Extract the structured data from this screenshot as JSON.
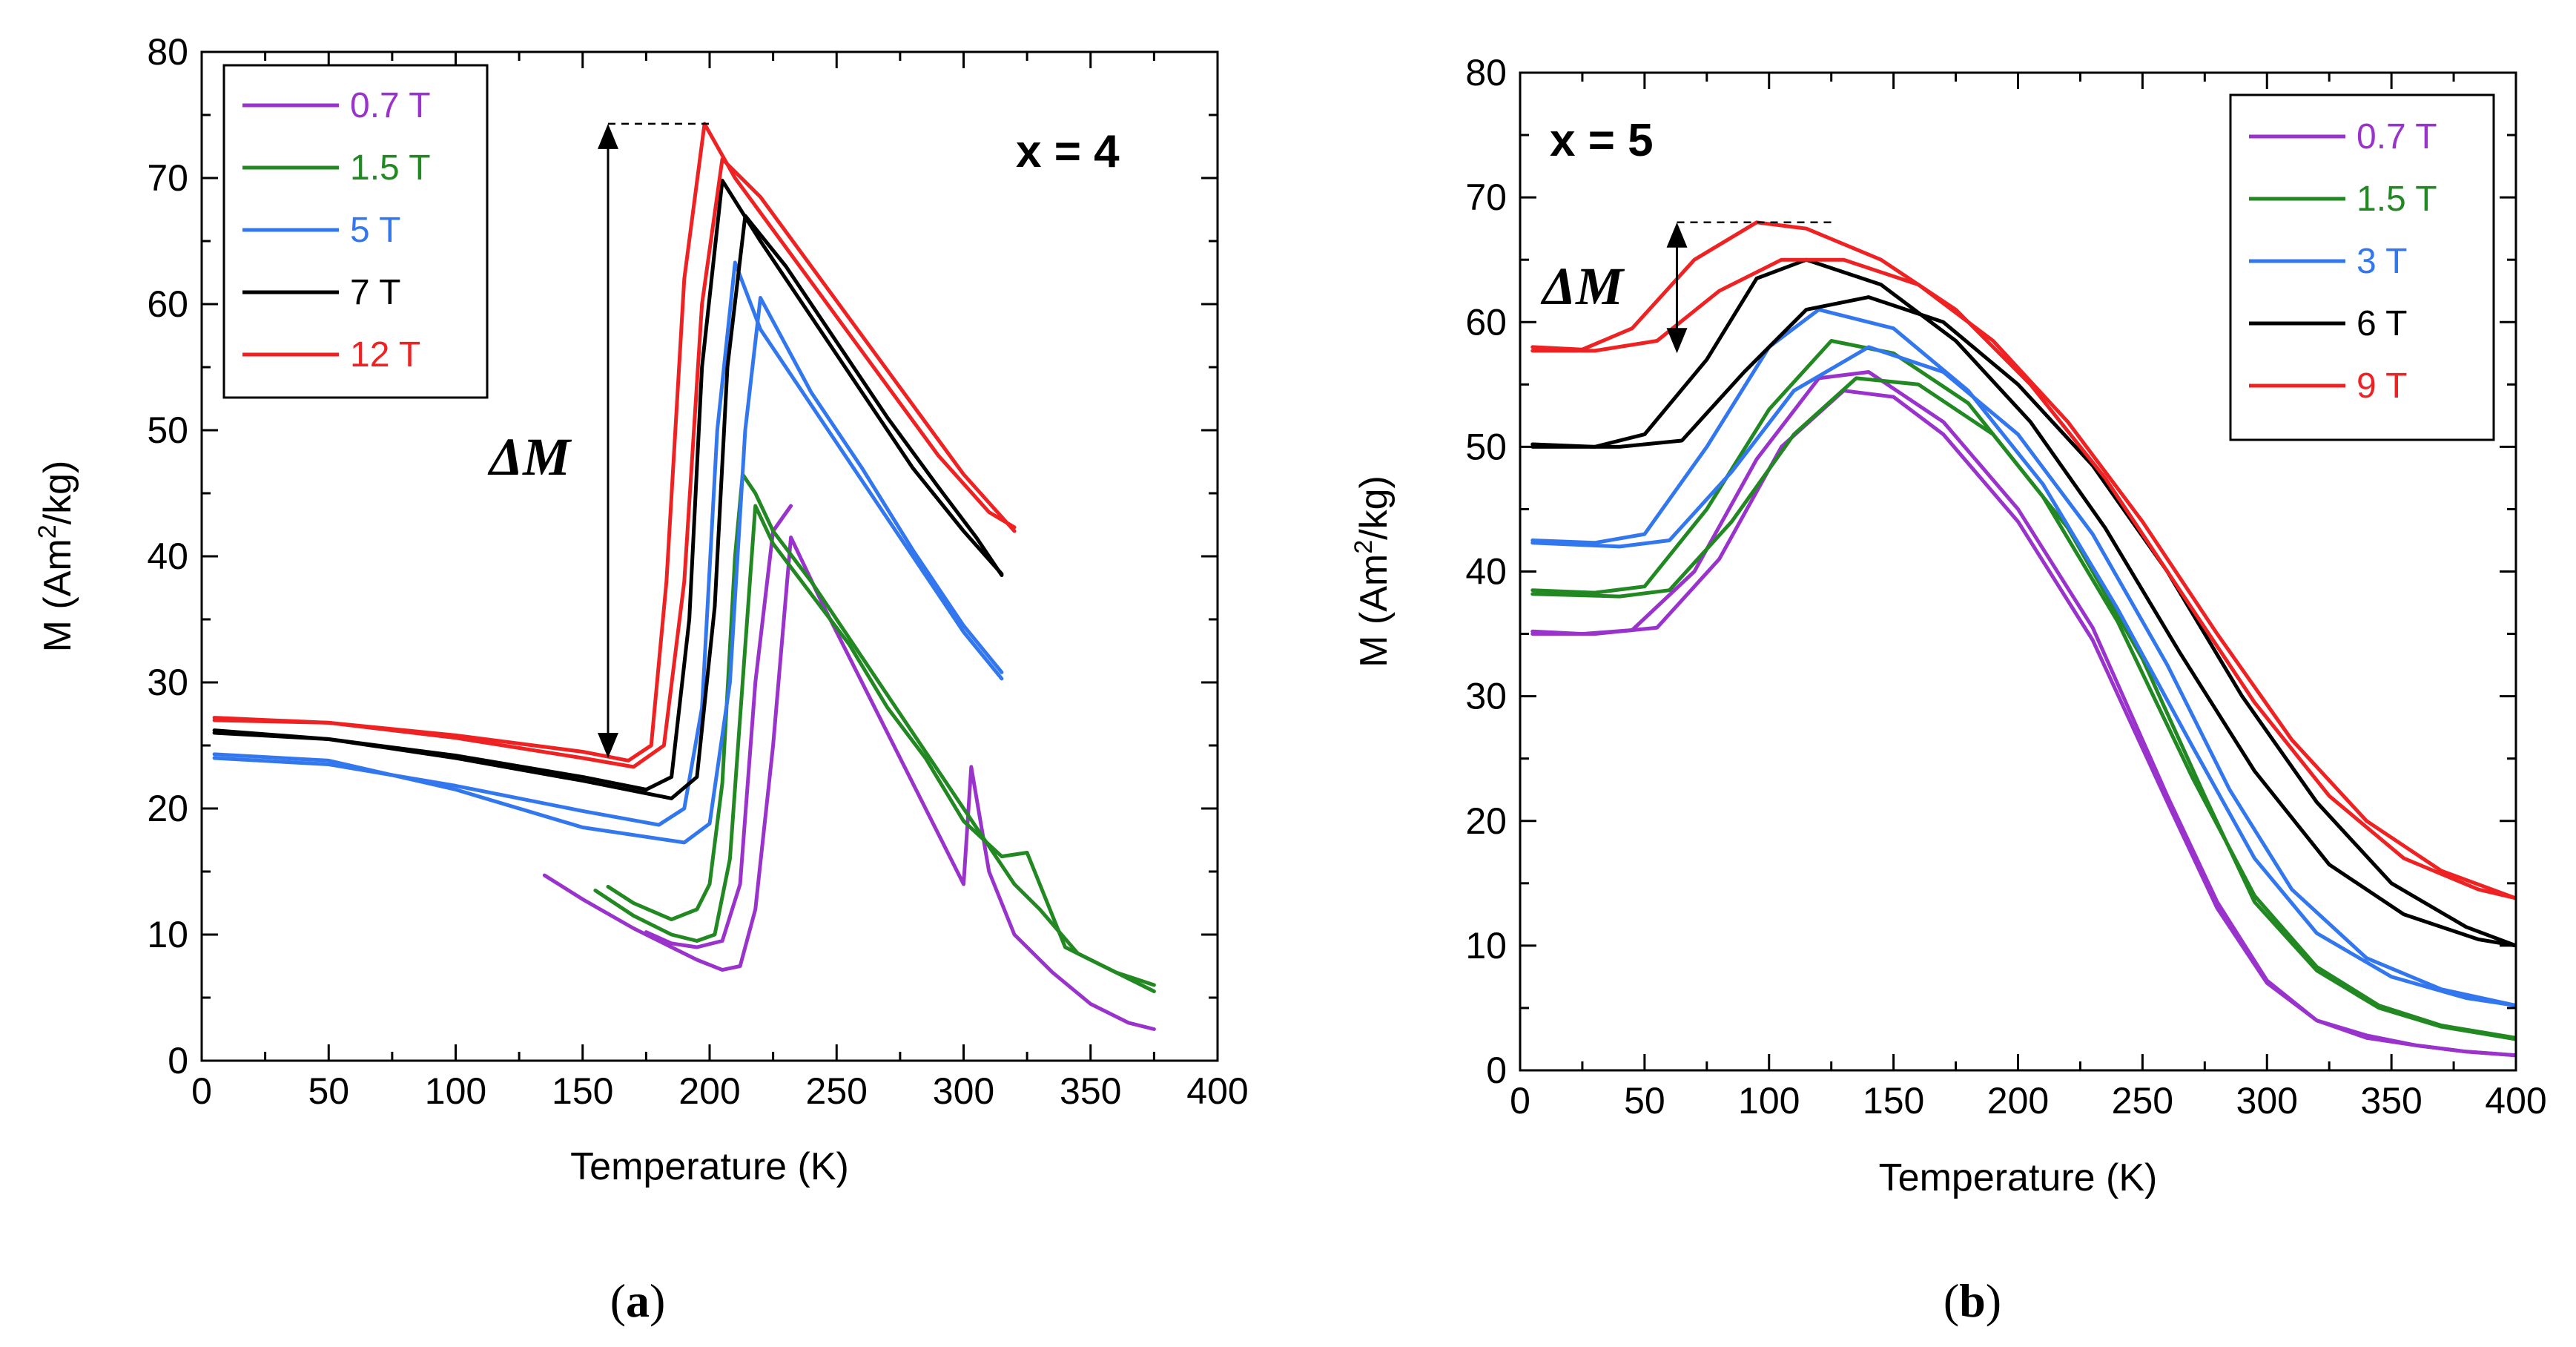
{
  "chart_data": [
    {
      "type": "line",
      "panel_label": {
        "open": "(",
        "letter": "a",
        "close": ")"
      },
      "annotation": "x = 4",
      "delta_label": "ΔM",
      "xlabel": "Temperature (K)",
      "ylabel": "M (Am²/kg)",
      "ylabel_parts": {
        "pre": "M (Am",
        "sup": "2",
        "post": "/kg)"
      },
      "xlim": [
        0,
        400
      ],
      "ylim": [
        0,
        80
      ],
      "xticks": [
        "0",
        "50",
        "100",
        "150",
        "200",
        "250",
        "300",
        "350",
        "400"
      ],
      "yticks": [
        "0",
        "10",
        "20",
        "30",
        "40",
        "50",
        "60",
        "70",
        "80"
      ],
      "legend_position": "top-left",
      "delta_arrow": {
        "x": 160,
        "y_top": 74.3,
        "y_bottom": 24,
        "dash_x_end": 200
      },
      "series": [
        {
          "name": "0.7 T",
          "color": "#9933cc",
          "x": [
            135,
            150,
            170,
            185,
            195,
            205,
            212,
            218,
            225,
            232,
            245,
            260,
            275,
            290,
            300,
            303,
            310,
            320,
            335,
            350,
            365,
            375
          ],
          "y": [
            14.7,
            12.8,
            10.5,
            9.0,
            8.0,
            7.2,
            7.5,
            12,
            25,
            41.5,
            36,
            30,
            24,
            18,
            14,
            23.3,
            15,
            10,
            7,
            4.5,
            3,
            2.5
          ]
        },
        {
          "name": "0.7 T",
          "color": "#9933cc",
          "x": [
            175,
            185,
            195,
            205,
            212,
            218,
            225,
            232
          ],
          "y": [
            10.2,
            9.3,
            9.0,
            9.5,
            14,
            30,
            42,
            44
          ]
        },
        {
          "name": "1.5 T",
          "color": "#228822",
          "x": [
            155,
            170,
            185,
            195,
            202,
            208,
            213,
            218,
            225,
            240,
            255,
            270,
            285,
            300,
            315,
            325,
            340,
            360,
            375
          ],
          "y": [
            13.5,
            11.5,
            10,
            9.5,
            10,
            16,
            30,
            44,
            41,
            37,
            33,
            28,
            24,
            19,
            16.2,
            16.5,
            9,
            7,
            5.5
          ]
        },
        {
          "name": "1.5 T",
          "color": "#228822",
          "x": [
            160,
            170,
            185,
            195,
            200,
            205,
            210,
            213,
            218,
            225,
            240,
            260,
            280,
            300,
            320,
            330,
            345,
            360,
            375
          ],
          "y": [
            13.8,
            12.5,
            11.2,
            12,
            14,
            22,
            40,
            46.5,
            45,
            42,
            38,
            32,
            26,
            20,
            14,
            12,
            8.5,
            7,
            6
          ]
        },
        {
          "name": "5 T",
          "color": "#3377ee",
          "x": [
            5,
            50,
            100,
            150,
            180,
            190,
            197,
            203,
            210,
            220,
            240,
            260,
            280,
            300,
            315
          ],
          "y": [
            24,
            23.5,
            21.8,
            19.8,
            18.7,
            20,
            28,
            50,
            63.3,
            58,
            52,
            46,
            40,
            34,
            30.3
          ]
        },
        {
          "name": "5 T",
          "color": "#3377ee",
          "x": [
            5,
            50,
            100,
            150,
            190,
            200,
            208,
            214,
            220,
            240,
            260,
            280,
            300,
            315
          ],
          "y": [
            24.3,
            23.8,
            21.5,
            18.5,
            17.3,
            18.8,
            30,
            50,
            60.5,
            53,
            47,
            40.5,
            34.5,
            30.8
          ]
        },
        {
          "name": "7 T",
          "color": "#000000",
          "x": [
            5,
            50,
            100,
            150,
            175,
            185,
            192,
            197,
            205,
            220,
            240,
            260,
            280,
            300,
            315
          ],
          "y": [
            26,
            25.5,
            24.2,
            22.5,
            21.5,
            22.5,
            35,
            55,
            69.8,
            65,
            59,
            53,
            47,
            42,
            38.6
          ]
        },
        {
          "name": "7 T",
          "color": "#000000",
          "x": [
            5,
            50,
            100,
            150,
            185,
            195,
            202,
            207,
            214,
            230,
            250,
            270,
            290,
            305,
            315
          ],
          "y": [
            26.2,
            25.5,
            24,
            22.2,
            20.8,
            22.5,
            36,
            55,
            67,
            63,
            57,
            51,
            45.5,
            41.5,
            38.5
          ]
        },
        {
          "name": "12 T",
          "color": "#ee2222",
          "x": [
            5,
            50,
            100,
            150,
            168,
            177,
            183,
            190,
            198,
            210,
            230,
            250,
            270,
            290,
            310,
            320
          ],
          "y": [
            27,
            26.8,
            25.8,
            24.5,
            23.8,
            25,
            38,
            62,
            74.3,
            70,
            64.5,
            59,
            53.5,
            48,
            43.5,
            42.3
          ]
        },
        {
          "name": "12 T",
          "color": "#ee2222",
          "x": [
            5,
            50,
            100,
            150,
            170,
            182,
            190,
            197,
            205,
            220,
            240,
            260,
            280,
            300,
            320
          ],
          "y": [
            27.2,
            26.8,
            25.6,
            24,
            23.3,
            25,
            38,
            60,
            71.5,
            68.5,
            63,
            57.5,
            52,
            46.5,
            42
          ]
        }
      ],
      "legend": [
        {
          "name": "0.7 T",
          "color": "#9933cc"
        },
        {
          "name": "1.5 T",
          "color": "#228822"
        },
        {
          "name": "5 T",
          "color": "#3377ee"
        },
        {
          "name": "7 T",
          "color": "#000000"
        },
        {
          "name": "12 T",
          "color": "#ee2222"
        }
      ]
    },
    {
      "type": "line",
      "panel_label": {
        "open": "(",
        "letter": "b",
        "close": ")"
      },
      "annotation": "x = 5",
      "delta_label": "ΔM",
      "xlabel": "Temperature (K)",
      "ylabel": "M (Am²/kg)",
      "ylabel_parts": {
        "pre": "M (Am",
        "sup": "2",
        "post": "/kg)"
      },
      "xlim": [
        0,
        400
      ],
      "ylim": [
        0,
        80
      ],
      "xticks": [
        "0",
        "50",
        "100",
        "150",
        "200",
        "250",
        "300",
        "350",
        "400"
      ],
      "yticks": [
        "0",
        "10",
        "20",
        "30",
        "40",
        "50",
        "60",
        "70",
        "80"
      ],
      "legend_position": "top-right",
      "delta_arrow": {
        "x": 63,
        "y_top": 68,
        "y_bottom": 57.5,
        "dash_x_end": 125
      },
      "series": [
        {
          "name": "0.7 T",
          "color": "#9933cc",
          "x": [
            5,
            30,
            55,
            80,
            105,
            130,
            150,
            170,
            200,
            230,
            260,
            280,
            300,
            320,
            340,
            360,
            380,
            400
          ],
          "y": [
            35,
            35,
            35.5,
            41,
            50,
            54.5,
            54,
            51,
            44,
            34.5,
            21.5,
            13,
            7,
            4,
            2.8,
            2,
            1.5,
            1.2
          ]
        },
        {
          "name": "0.7 T",
          "color": "#9933cc",
          "x": [
            5,
            25,
            45,
            70,
            95,
            120,
            140,
            170,
            200,
            230,
            260,
            280,
            300,
            320,
            340,
            360,
            380,
            400
          ],
          "y": [
            35.2,
            35,
            35.3,
            40,
            49,
            55.5,
            56,
            52,
            45,
            35.5,
            22,
            13.5,
            7.2,
            4,
            2.6,
            2,
            1.5,
            1.2
          ]
        },
        {
          "name": "1.5 T",
          "color": "#228822",
          "x": [
            5,
            40,
            60,
            85,
            110,
            135,
            160,
            190,
            220,
            250,
            275,
            295,
            320,
            345,
            370,
            400
          ],
          "y": [
            38.2,
            38,
            38.5,
            44,
            51,
            55.5,
            55,
            51,
            43.5,
            33,
            22,
            13.5,
            8,
            5,
            3.5,
            2.5
          ]
        },
        {
          "name": "1.5 T",
          "color": "#228822",
          "x": [
            5,
            30,
            50,
            75,
            100,
            125,
            150,
            180,
            210,
            240,
            270,
            295,
            320,
            345,
            370,
            400
          ],
          "y": [
            38.5,
            38.3,
            38.8,
            45,
            53,
            58.5,
            57.5,
            53.5,
            46,
            36,
            23.5,
            14,
            8.3,
            5.2,
            3.6,
            2.6
          ]
        },
        {
          "name": "3 T",
          "color": "#3377ee",
          "x": [
            5,
            40,
            60,
            85,
            110,
            140,
            170,
            200,
            230,
            260,
            285,
            310,
            340,
            370,
            400
          ],
          "y": [
            42.3,
            42,
            42.5,
            48,
            54.5,
            58,
            56,
            51,
            43,
            32.5,
            22.5,
            14.5,
            9,
            6.5,
            5.2
          ]
        },
        {
          "name": "3 T",
          "color": "#3377ee",
          "x": [
            5,
            30,
            50,
            75,
            100,
            120,
            150,
            180,
            210,
            240,
            270,
            295,
            320,
            350,
            380,
            400
          ],
          "y": [
            42.5,
            42.3,
            43,
            50,
            58,
            61,
            59.5,
            54.5,
            47,
            37,
            26,
            17,
            11,
            7.5,
            5.8,
            5.2
          ]
        },
        {
          "name": "6 T",
          "color": "#000000",
          "x": [
            5,
            40,
            65,
            90,
            115,
            140,
            170,
            200,
            230,
            260,
            290,
            320,
            350,
            380,
            400
          ],
          "y": [
            50,
            50,
            50.5,
            56,
            61,
            62,
            60,
            55,
            48.5,
            40,
            30,
            21.5,
            15,
            11.5,
            10
          ]
        },
        {
          "name": "6 T",
          "color": "#000000",
          "x": [
            5,
            30,
            50,
            75,
            95,
            115,
            145,
            175,
            205,
            235,
            265,
            295,
            325,
            355,
            385,
            400
          ],
          "y": [
            50.2,
            50,
            51,
            57,
            63.5,
            65,
            63,
            58.5,
            52,
            43.5,
            33.5,
            24,
            16.5,
            12.5,
            10.5,
            10
          ]
        },
        {
          "name": "9 T",
          "color": "#ee2222",
          "x": [
            5,
            30,
            55,
            80,
            105,
            130,
            160,
            190,
            220,
            250,
            280,
            310,
            340,
            370,
            400
          ],
          "y": [
            57.7,
            57.7,
            58.5,
            62.5,
            65,
            65,
            63,
            58.5,
            52,
            44,
            35,
            26.5,
            20,
            16,
            13.8
          ]
        },
        {
          "name": "9 T",
          "color": "#ee2222",
          "x": [
            5,
            25,
            45,
            70,
            95,
            115,
            145,
            175,
            205,
            235,
            265,
            295,
            325,
            355,
            385,
            400
          ],
          "y": [
            58,
            57.8,
            59.5,
            65,
            68,
            67.5,
            65,
            61,
            55,
            47.5,
            38.5,
            29.5,
            22,
            17,
            14.5,
            13.8
          ]
        }
      ],
      "legend": [
        {
          "name": "0.7 T",
          "color": "#9933cc"
        },
        {
          "name": "1.5 T",
          "color": "#228822"
        },
        {
          "name": "3 T",
          "color": "#3377ee"
        },
        {
          "name": "6 T",
          "color": "#000000"
        },
        {
          "name": "9 T",
          "color": "#ee2222"
        }
      ]
    }
  ]
}
